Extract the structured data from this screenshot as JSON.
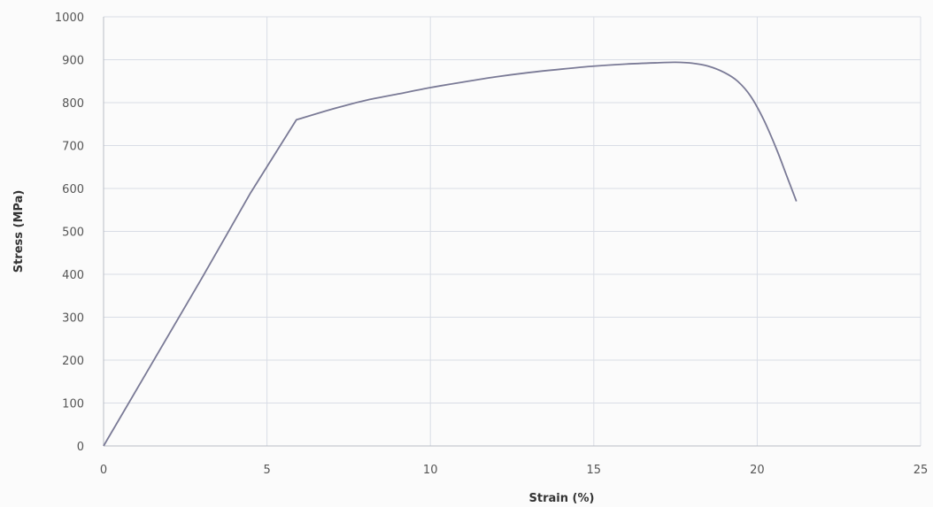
{
  "chart_data": {
    "type": "line",
    "title": "",
    "xlabel": "Strain (%)",
    "ylabel": "Stress (MPa)",
    "xlim": [
      0,
      25
    ],
    "ylim": [
      0,
      1000
    ],
    "x_ticks": [
      "0",
      "5",
      "10",
      "15",
      "20",
      "25"
    ],
    "y_ticks": [
      "0",
      "100",
      "200",
      "300",
      "400",
      "500",
      "600",
      "700",
      "800",
      "900",
      "1000"
    ],
    "grid": true,
    "legend": "none",
    "line_color": "#7a7a96",
    "series": [
      {
        "x": [
          0,
          1.5,
          3,
          4.5,
          5.9,
          7,
          8,
          9,
          10,
          11,
          12,
          13,
          14,
          15,
          16,
          17,
          17.5,
          18,
          18.5,
          19,
          19.4,
          19.8,
          20.2,
          20.6,
          20.9,
          21.2
        ],
        "y": [
          0,
          195,
          390,
          590,
          760,
          785,
          805,
          820,
          835,
          848,
          860,
          870,
          878,
          885,
          890,
          893,
          894,
          892,
          885,
          870,
          850,
          815,
          760,
          690,
          630,
          570
        ]
      }
    ]
  }
}
